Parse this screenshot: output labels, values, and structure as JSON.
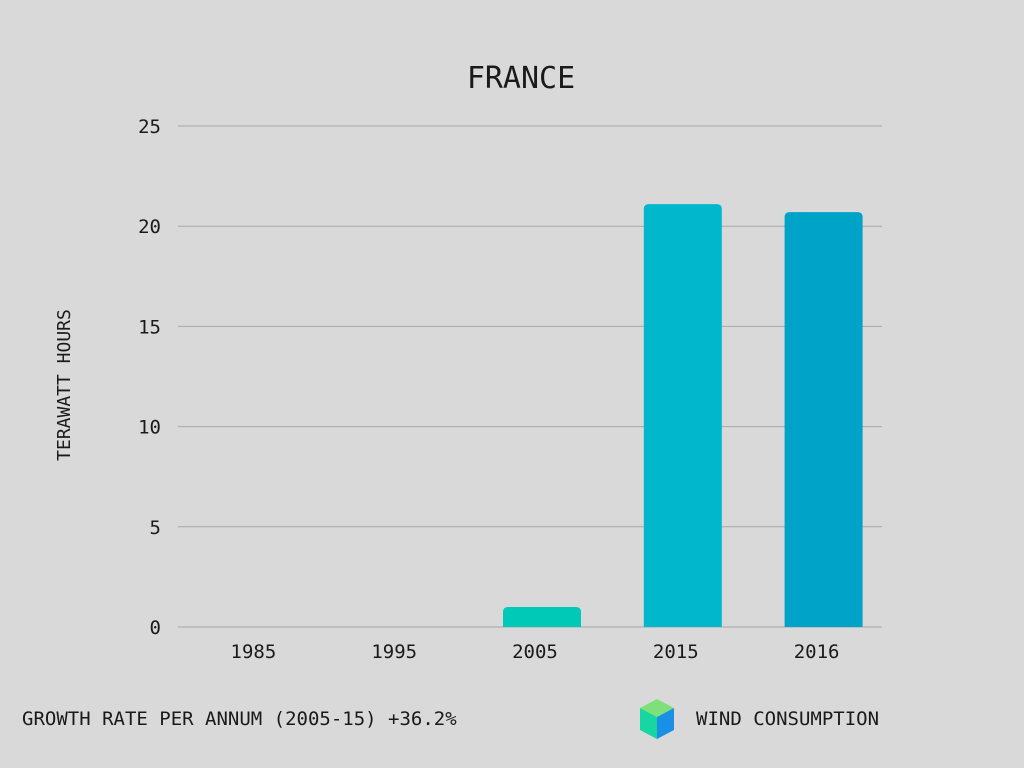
{
  "chart_data": {
    "type": "bar",
    "title": "FRANCE",
    "xlabel": "",
    "ylabel": "TERAWATT HOURS",
    "categories": [
      "1985",
      "1995",
      "2005",
      "2015",
      "2016"
    ],
    "series": [
      {
        "name": "WIND CONSUMPTION",
        "values": [
          0,
          0,
          1.0,
          21.1,
          20.7
        ],
        "colors": [
          "#00c9b7",
          "#00c9b7",
          "#00c9b7",
          "#00b7cc",
          "#00a3c8"
        ]
      }
    ],
    "yticks": [
      "0",
      "5",
      "10",
      "15",
      "20",
      "25"
    ],
    "ylim": [
      0,
      25
    ],
    "grid": true,
    "legend_position": "bottom-right"
  },
  "footer": {
    "note": "GROWTH RATE PER ANNUM (2005-15) +36.2%"
  },
  "legend": {
    "icon": "cube-icon",
    "label": "WIND CONSUMPTION"
  }
}
